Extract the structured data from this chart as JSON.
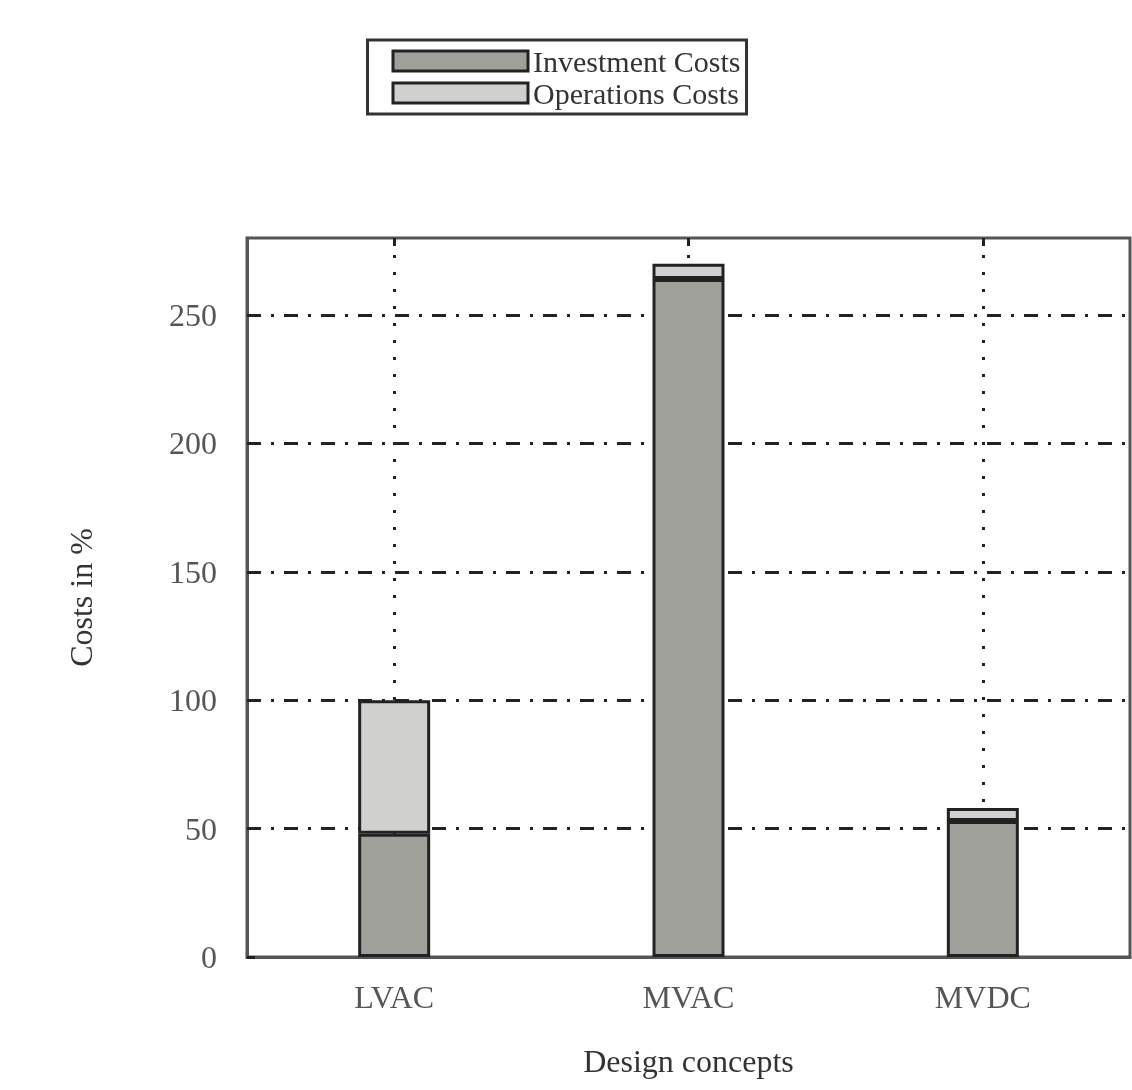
{
  "chart_data": {
    "type": "bar",
    "stacked": true,
    "xlabel": "Design concepts",
    "ylabel": "Costs in %",
    "categories": [
      "LVAC",
      "MVAC",
      "MVDC"
    ],
    "series": [
      {
        "name": "Investment Costs",
        "color": "#a0a09a",
        "values": [
          48,
          264,
          53
        ]
      },
      {
        "name": "Operations Costs",
        "color": "#d0d0ce",
        "values": [
          52,
          6,
          5
        ]
      }
    ],
    "ylim": [
      0,
      280
    ],
    "yticks": [
      0,
      50,
      100,
      150,
      200,
      250
    ],
    "grid": true,
    "legend": "top"
  }
}
